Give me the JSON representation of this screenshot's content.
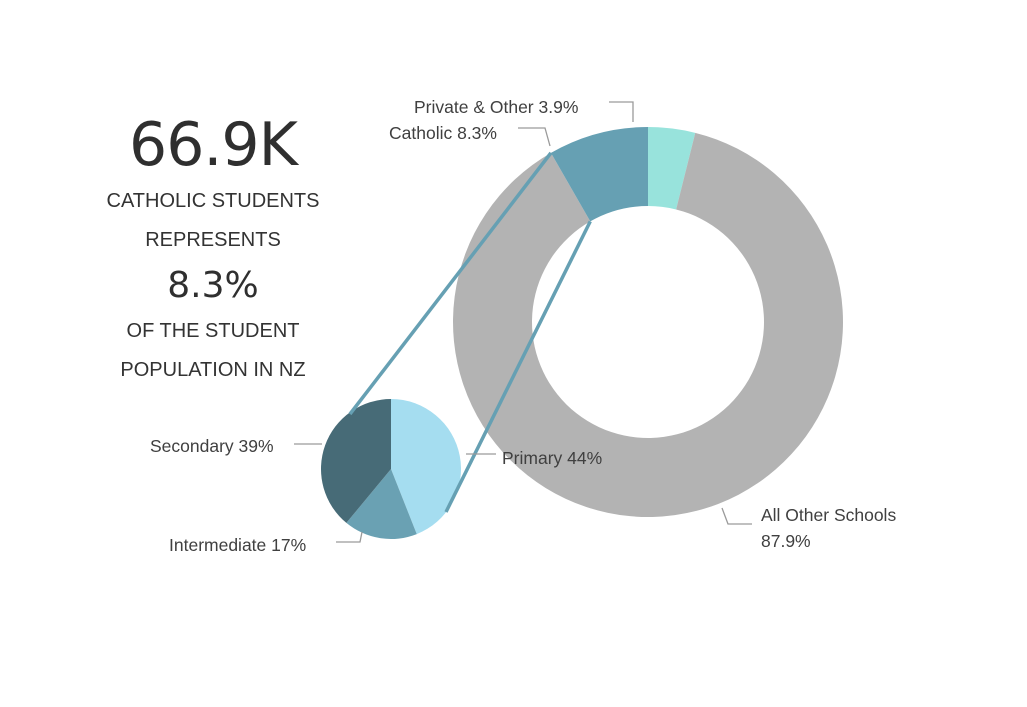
{
  "headline": {
    "count": "66.9K",
    "line1": "CATHOLIC STUDENTS",
    "line2": "REPRESENTS",
    "percent": "8.3%",
    "line3": "OF THE STUDENT",
    "line4": "POPULATION IN NZ"
  },
  "chart_data": [
    {
      "type": "donut",
      "slices": [
        {
          "name": "Private & Other",
          "value": 3.9,
          "label": "Private & Other 3.9%",
          "color": "#98e3dc"
        },
        {
          "name": "All Other Schools",
          "value": 87.9,
          "label_lines": [
            "All Other Schools",
            "87.9%"
          ],
          "color": "#b3b3b3"
        },
        {
          "name": "Catholic",
          "value": 8.3,
          "label": "Catholic 8.3%",
          "color": "#66a0b3"
        }
      ]
    },
    {
      "type": "pie",
      "breakdown_of": "Catholic",
      "slices": [
        {
          "name": "Primary",
          "value": 44,
          "label": "Primary 44%",
          "color": "#a5ddf0"
        },
        {
          "name": "Intermediate",
          "value": 17,
          "label": "Intermediate 17%",
          "color": "#6aa1b3"
        },
        {
          "name": "Secondary",
          "value": 39,
          "label": "Secondary 39%",
          "color": "#476b77"
        }
      ]
    }
  ],
  "connector_color": "#66a0b3",
  "leader_color": "#9a9a9a"
}
